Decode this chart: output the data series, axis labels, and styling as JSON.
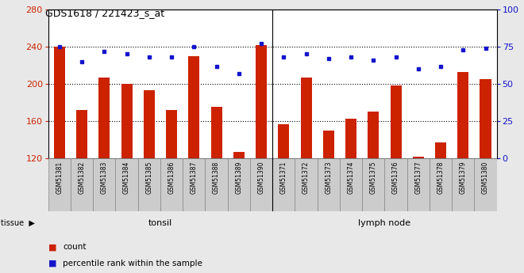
{
  "title": "GDS1618 / 221423_s_at",
  "categories": [
    "GSM51381",
    "GSM51382",
    "GSM51383",
    "GSM51384",
    "GSM51385",
    "GSM51386",
    "GSM51387",
    "GSM51388",
    "GSM51389",
    "GSM51390",
    "GSM51371",
    "GSM51372",
    "GSM51373",
    "GSM51374",
    "GSM51375",
    "GSM51376",
    "GSM51377",
    "GSM51378",
    "GSM51379",
    "GSM51380"
  ],
  "bar_values": [
    240,
    172,
    207,
    200,
    193,
    172,
    230,
    175,
    127,
    242,
    157,
    207,
    150,
    163,
    170,
    198,
    122,
    137,
    213,
    205
  ],
  "dot_values_pct": [
    75,
    65,
    72,
    70,
    68,
    68,
    75,
    62,
    57,
    77,
    68,
    70,
    67,
    68,
    66,
    68,
    60,
    62,
    73,
    74
  ],
  "ymin": 120,
  "ymax": 280,
  "yticks_left": [
    120,
    160,
    200,
    240,
    280
  ],
  "yticks_right": [
    0,
    25,
    50,
    75,
    100
  ],
  "bar_color": "#CC2200",
  "dot_color": "#1414CC",
  "tonsil_count": 10,
  "lymph_count": 10,
  "tonsil_color": "#BBFFBB",
  "lymph_color": "#44DD44",
  "tissue_label": "tissue",
  "legend_count_label": "count",
  "legend_pct_label": "percentile rank within the sample",
  "fig_bg": "#E8E8E8",
  "plot_bg": "#FFFFFF",
  "xtick_bg": "#CCCCCC"
}
